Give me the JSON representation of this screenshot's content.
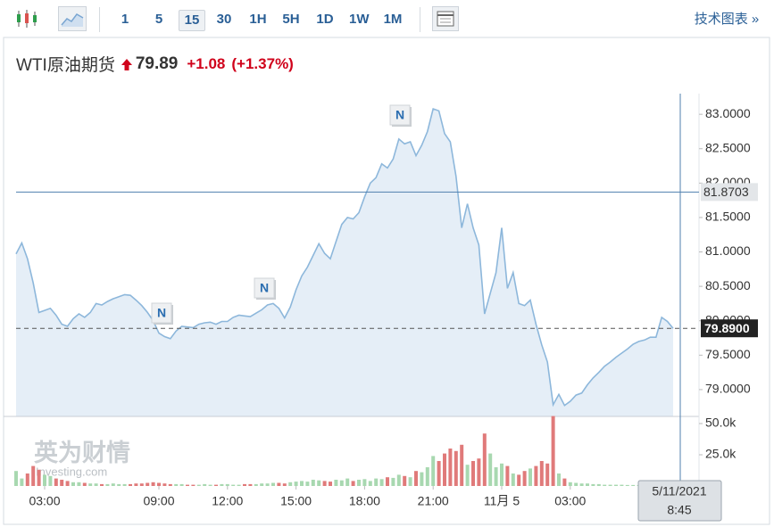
{
  "toolbar": {
    "intervals": [
      "1",
      "5",
      "15",
      "30",
      "1H",
      "5H",
      "1D",
      "1W",
      "1M"
    ],
    "selected": 2,
    "tech_chart": "技术图表 »"
  },
  "header": {
    "name": "WTI原油期货",
    "price": "79.89",
    "change": "+1.08",
    "change_pct": "(+1.37%)"
  },
  "watermark": {
    "brand": "英为财情",
    "site": "Investing.com"
  },
  "news_markers": [
    "N",
    "N",
    "N"
  ],
  "chart_data": {
    "type": "line",
    "color": "#8db7db",
    "area_color": "#e5eef7",
    "categories": [
      null,
      null,
      null,
      null,
      null,
      "03:00",
      null,
      null,
      null,
      null,
      null,
      null,
      null,
      null,
      null,
      null,
      null,
      null,
      null,
      null,
      null,
      null,
      null,
      null,
      null,
      "09:00",
      null,
      null,
      null,
      null,
      null,
      null,
      null,
      null,
      null,
      null,
      null,
      "12:00",
      null,
      null,
      null,
      null,
      null,
      null,
      null,
      null,
      null,
      null,
      null,
      "15:00",
      null,
      null,
      null,
      null,
      null,
      null,
      null,
      null,
      null,
      null,
      null,
      "18:00",
      null,
      null,
      null,
      null,
      null,
      null,
      null,
      null,
      null,
      null,
      null,
      "21:00",
      null,
      null,
      null,
      null,
      null,
      null,
      null,
      null,
      null,
      null,
      null,
      "11月 5",
      null,
      null,
      null,
      null,
      null,
      null,
      null,
      null,
      null,
      null,
      null,
      "03:00",
      null,
      null,
      null,
      null,
      null,
      null,
      null,
      null,
      null,
      null,
      null,
      null,
      null,
      null,
      null,
      null,
      null,
      null
    ],
    "values": [
      80.97,
      81.13,
      80.9,
      80.55,
      80.12,
      80.15,
      80.18,
      80.08,
      79.95,
      79.92,
      80.03,
      80.1,
      80.05,
      80.12,
      80.25,
      80.23,
      80.28,
      80.32,
      80.35,
      80.38,
      80.37,
      80.3,
      80.22,
      80.12,
      80.0,
      79.82,
      79.77,
      79.74,
      79.85,
      79.92,
      79.91,
      79.9,
      79.95,
      79.97,
      79.98,
      79.95,
      79.99,
      79.99,
      80.05,
      80.08,
      80.07,
      80.06,
      80.11,
      80.16,
      80.23,
      80.25,
      80.18,
      80.04,
      80.2,
      80.45,
      80.65,
      80.78,
      80.95,
      81.12,
      80.98,
      80.9,
      81.15,
      81.4,
      81.5,
      81.48,
      81.57,
      81.8,
      82.0,
      82.08,
      82.28,
      82.22,
      82.35,
      82.64,
      82.57,
      82.6,
      82.4,
      82.55,
      82.75,
      83.08,
      83.05,
      82.72,
      82.6,
      82.1,
      81.35,
      81.7,
      81.35,
      81.1,
      80.1,
      80.4,
      80.7,
      81.35,
      80.47,
      80.7,
      80.25,
      80.22,
      80.3,
      79.95,
      79.65,
      79.4,
      78.78,
      78.93,
      78.77,
      78.83,
      78.92,
      78.95,
      79.07,
      79.17,
      79.25,
      79.34,
      79.4,
      79.47,
      79.53,
      79.59,
      79.66,
      79.7,
      79.72,
      79.76,
      79.76,
      80.05,
      79.99,
      79.89
    ],
    "ylim": [
      78.61,
      83.3
    ],
    "yticks": [
      {
        "value": 79,
        "label": "79.0000"
      },
      {
        "value": 79.5,
        "label": "79.5000"
      },
      {
        "value": 80,
        "label": "80.0000"
      },
      {
        "value": 80.5,
        "label": "80.5000"
      },
      {
        "value": 81,
        "label": "81.0000"
      },
      {
        "value": 81.5,
        "label": "81.5000"
      },
      {
        "value": 82,
        "label": "82.0000"
      },
      {
        "value": 82.5,
        "label": "82.5000"
      },
      {
        "value": 83,
        "label": "83.0000"
      }
    ],
    "last_price": {
      "value": 79.89,
      "label": "79.8900"
    },
    "crosshair": {
      "value": 81.8703,
      "date": "5/11/2021",
      "time": "8:45"
    },
    "volume": {
      "values": [
        12000,
        6000,
        10000,
        16000,
        13000,
        9000,
        8000,
        6000,
        5000,
        4000,
        3000,
        3000,
        2500,
        2000,
        2000,
        1500,
        1500,
        2000,
        1500,
        1500,
        1500,
        2000,
        2000,
        2500,
        3000,
        2500,
        2000,
        1500,
        1500,
        1500,
        1000,
        1000,
        1000,
        1500,
        1000,
        1000,
        1500,
        1500,
        1000,
        1000,
        1500,
        1500,
        1500,
        2000,
        2000,
        2500,
        2500,
        2000,
        3000,
        3500,
        4000,
        3500,
        5000,
        4500,
        4000,
        3500,
        5000,
        4500,
        6000,
        4000,
        5000,
        5500,
        4000,
        6000,
        5500,
        7000,
        6500,
        9000,
        8000,
        7000,
        12000,
        11000,
        15000,
        24000,
        20000,
        26000,
        30000,
        28000,
        33000,
        17000,
        20000,
        22000,
        42000,
        26000,
        15000,
        18000,
        16000,
        10000,
        9000,
        12000,
        14000,
        16000,
        20000,
        18000,
        56000,
        10000,
        6000,
        3000,
        2500,
        2000,
        2000,
        1500,
        1500,
        1000,
        1000,
        1000,
        1000,
        800,
        800,
        800,
        800,
        600,
        600,
        600,
        500,
        500
      ],
      "ylim": [
        0,
        55700
      ],
      "yticks": [
        {
          "value": 25000,
          "label": "25.0k"
        },
        {
          "value": 50000,
          "label": "50.0k"
        }
      ],
      "up_color": "#a8d8b0",
      "down_color": "#e07a7a"
    }
  }
}
